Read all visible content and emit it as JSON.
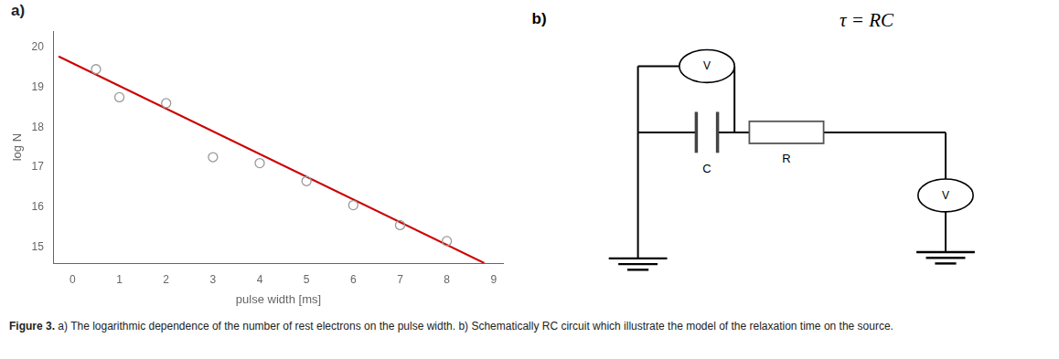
{
  "chart_data": {
    "type": "scatter",
    "xlabel": "pulse width [ms]",
    "ylabel": "log N",
    "series": [
      {
        "type": "line",
        "color": "#cc0000",
        "line_style": "solid",
        "x": [
          -0.3,
          8.8
        ],
        "values": [
          19.77,
          14.6
        ]
      },
      {
        "type": "scatter",
        "color": "#999999",
        "marker": "circle",
        "x": [
          0.5,
          1.0,
          2.0,
          3.0,
          4.0,
          5.0,
          6.0,
          7.0,
          8.0
        ],
        "values": [
          19.45,
          18.75,
          18.6,
          17.25,
          17.1,
          16.65,
          16.05,
          15.55,
          15.15
        ]
      }
    ],
    "xlim": [
      -0.4,
      9.2
    ],
    "ylim": [
      14.6,
      20.4
    ],
    "xticks": [
      0,
      1,
      2,
      3,
      4,
      5,
      6,
      7,
      8,
      9
    ],
    "yticks": [
      15,
      16,
      17,
      18,
      19,
      20
    ],
    "grid": false,
    "annotations": [
      "a)",
      "b)",
      "τ = RC",
      "V",
      "V",
      "C",
      "R"
    ],
    "caption": [
      "Figure 3.",
      " a) The logarithmic dependence of the number of rest electrons on the pulse width. b) Schematically RC circuit which illustrate the model of the relaxation time on the source."
    ]
  }
}
